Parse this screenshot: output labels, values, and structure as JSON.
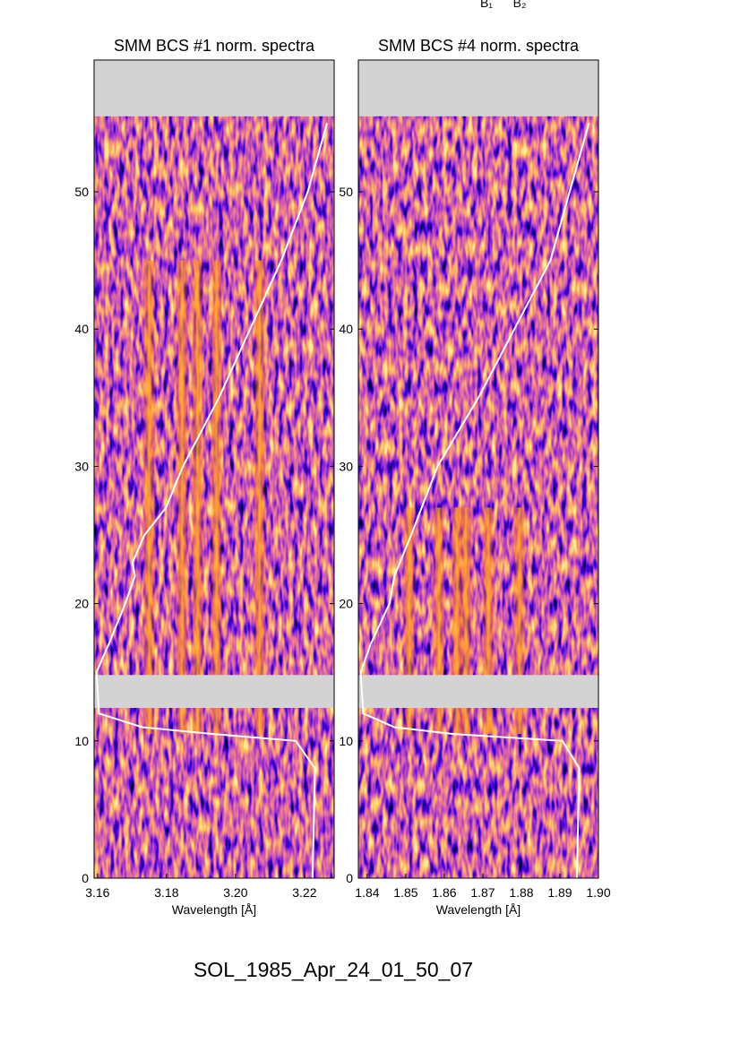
{
  "header_labels": [
    "B₁",
    "B₂"
  ],
  "caption": "SOL_1985_Apr_24_01_50_07",
  "chart_data": [
    {
      "type": "spectrogram",
      "title": "SMM BCS #1 norm. spectra",
      "xlabel": "Wavelength [Å]",
      "xlim": [
        3.159,
        3.2286
      ],
      "xticks": [
        {
          "value": 3.16,
          "label": "3.16"
        },
        {
          "value": 3.18,
          "label": "3.18"
        },
        {
          "value": 3.2,
          "label": "3.20"
        },
        {
          "value": 3.22,
          "label": "3.22"
        }
      ],
      "ylim": [
        0,
        59.6
      ],
      "yticks": [
        0,
        10,
        20,
        30,
        40,
        50
      ],
      "gaps": [
        [
          12.4,
          14.8
        ],
        [
          55.5,
          59.6
        ]
      ],
      "emission_lines": [
        3.175,
        3.1845,
        3.189,
        3.1945,
        3.207
      ],
      "emission_ylim": [
        10.5,
        45
      ],
      "lightcurve": {
        "color": "#ffffff",
        "xlim": [
          0,
          1
        ],
        "y": [
          0,
          8,
          10,
          10.5,
          11,
          12,
          15,
          17,
          20,
          22,
          23,
          25,
          27,
          30,
          35,
          40,
          45,
          50,
          55
        ],
        "values": [
          0.91,
          0.92,
          0.84,
          0.5,
          0.2,
          0.02,
          0.01,
          0.06,
          0.13,
          0.17,
          0.16,
          0.21,
          0.3,
          0.37,
          0.52,
          0.65,
          0.78,
          0.89,
          0.97
        ]
      }
    },
    {
      "type": "spectrogram",
      "title": "SMM BCS #4 norm. spectra",
      "xlabel": "Wavelength [Å]",
      "xlim": [
        1.8377,
        1.9
      ],
      "xticks": [
        {
          "value": 1.84,
          "label": "1.84"
        },
        {
          "value": 1.85,
          "label": "1.85"
        },
        {
          "value": 1.86,
          "label": "1.86"
        },
        {
          "value": 1.87,
          "label": "1.87"
        },
        {
          "value": 1.88,
          "label": "1.88"
        },
        {
          "value": 1.89,
          "label": "1.89"
        },
        {
          "value": 1.9,
          "label": "1.90"
        }
      ],
      "ylim": [
        0,
        59.6
      ],
      "yticks": [
        0,
        10,
        20,
        30,
        40,
        50
      ],
      "gaps": [
        [
          12.4,
          14.8
        ],
        [
          55.5,
          59.6
        ]
      ],
      "emission_lines": [
        1.8509,
        1.8586,
        1.8633,
        1.8656,
        1.8714,
        1.8795
      ],
      "emission_ylim": [
        10.5,
        27
      ],
      "lightcurve": {
        "color": "#ffffff",
        "xlim": [
          0,
          1
        ],
        "y": [
          0,
          8,
          10,
          10.5,
          11,
          12,
          15,
          17,
          20,
          22,
          25,
          30,
          35,
          40,
          45,
          50,
          55
        ],
        "values": [
          0.91,
          0.92,
          0.85,
          0.4,
          0.15,
          0.02,
          0.01,
          0.05,
          0.13,
          0.15,
          0.22,
          0.33,
          0.5,
          0.65,
          0.8,
          0.88,
          0.96
        ]
      }
    }
  ]
}
